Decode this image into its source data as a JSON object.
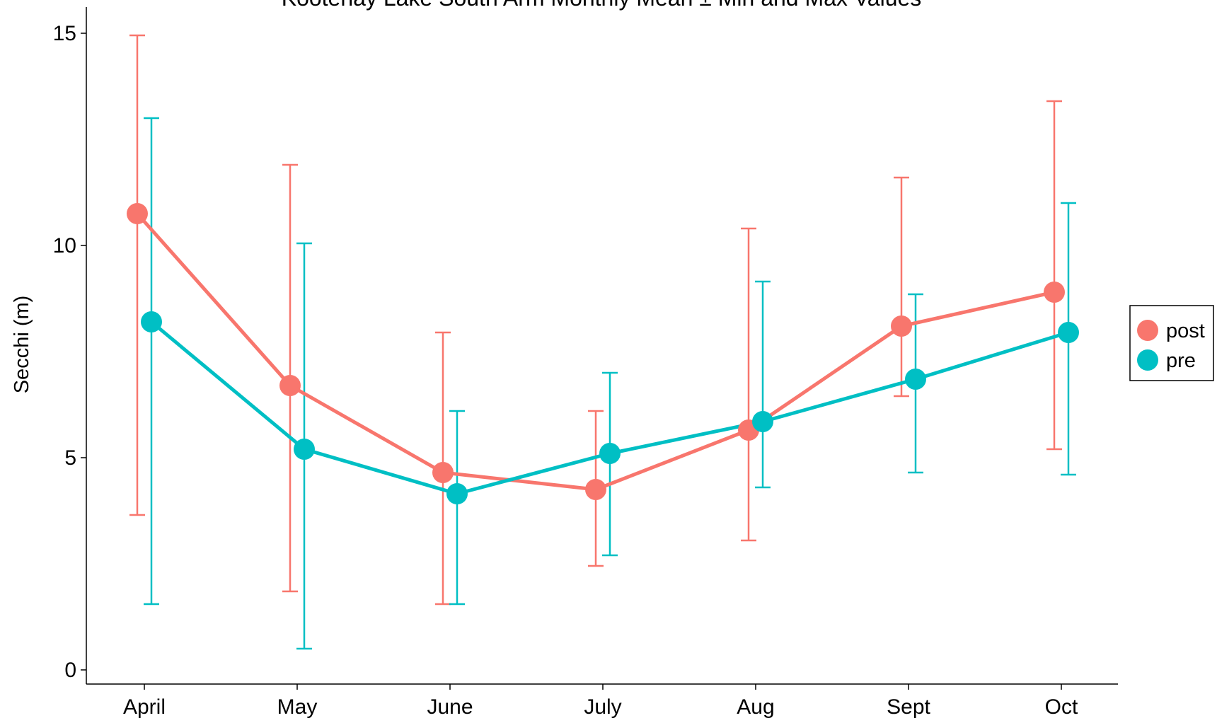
{
  "chart_data": {
    "type": "line",
    "title": "Kootenay Lake South Arm Monthly Mean ± Min and Max Values",
    "xlabel": "",
    "ylabel": "Secchi (m)",
    "ylim": [
      0,
      15
    ],
    "yticks": [
      0,
      5,
      10,
      15
    ],
    "categories": [
      "April",
      "May",
      "June",
      "July",
      "Aug",
      "Sept",
      "Oct"
    ],
    "grid": false,
    "legend_position": "right",
    "error_bars": true,
    "series": [
      {
        "name": "post",
        "color": "#F8766D",
        "values": [
          10.75,
          6.7,
          4.65,
          4.25,
          5.65,
          8.1,
          8.9
        ],
        "min": [
          3.65,
          1.85,
          1.55,
          2.45,
          3.05,
          6.45,
          5.2
        ],
        "max": [
          14.95,
          11.9,
          7.95,
          6.1,
          10.4,
          11.6,
          13.4
        ]
      },
      {
        "name": "pre",
        "color": "#00BFC4",
        "values": [
          8.2,
          5.2,
          4.15,
          5.1,
          5.85,
          6.85,
          7.95
        ],
        "min": [
          1.55,
          0.5,
          1.55,
          2.7,
          4.3,
          4.65,
          4.6
        ],
        "max": [
          13.0,
          10.05,
          6.1,
          7.0,
          9.15,
          8.85,
          11.0
        ]
      }
    ]
  }
}
